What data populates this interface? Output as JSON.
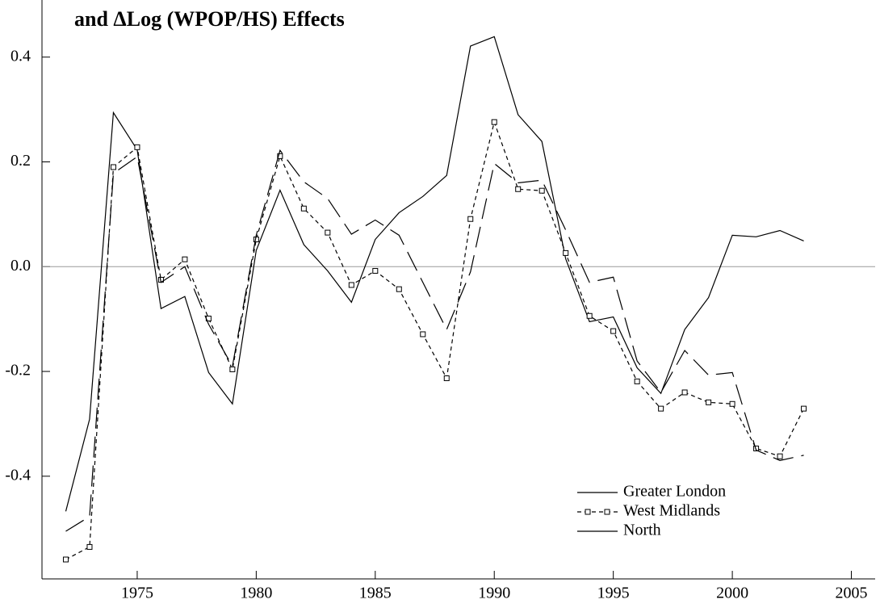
{
  "chart_data": {
    "type": "line",
    "title": "and ΔLog (WPOP/HS) Effects",
    "x": [
      1972,
      1973,
      1974,
      1975,
      1976,
      1977,
      1978,
      1979,
      1980,
      1981,
      1982,
      1983,
      1984,
      1985,
      1986,
      1987,
      1988,
      1989,
      1990,
      1991,
      1992,
      1993,
      1994,
      1995,
      1996,
      1997,
      1998,
      1999,
      2000,
      2001,
      2002,
      2003
    ],
    "series": [
      {
        "name": "Greater London",
        "color": "#000000",
        "line_style": "solid",
        "values": [
          -0.467,
          -0.291,
          0.294,
          0.223,
          -0.08,
          -0.057,
          -0.202,
          -0.262,
          0.031,
          0.146,
          0.042,
          -0.008,
          -0.068,
          0.052,
          0.103,
          0.134,
          0.174,
          0.421,
          0.439,
          0.29,
          0.239,
          0.015,
          -0.105,
          -0.096,
          -0.193,
          -0.242,
          -0.12,
          -0.059,
          0.06,
          0.057,
          0.069,
          0.049
        ]
      },
      {
        "name": "West Midlands",
        "color": "#000000",
        "line_style": "dashed",
        "marker": "square",
        "values": [
          -0.559,
          -0.535,
          0.19,
          0.228,
          -0.025,
          0.014,
          -0.099,
          -0.196,
          0.052,
          0.211,
          0.111,
          0.065,
          -0.035,
          -0.008,
          -0.043,
          -0.129,
          -0.213,
          0.091,
          0.276,
          0.148,
          0.145,
          0.026,
          -0.094,
          -0.123,
          -0.219,
          -0.271,
          -0.24,
          -0.259,
          -0.262,
          -0.347,
          -0.362,
          -0.271
        ]
      },
      {
        "name": "North",
        "color": "#000000",
        "line_style": "long-dash",
        "values": [
          -0.505,
          -0.477,
          0.178,
          0.21,
          -0.03,
          0.0,
          -0.11,
          -0.19,
          0.06,
          0.222,
          0.162,
          0.13,
          0.062,
          0.089,
          0.06,
          -0.03,
          -0.12,
          -0.01,
          0.197,
          0.16,
          0.165,
          0.07,
          -0.03,
          -0.02,
          -0.18,
          -0.24,
          -0.16,
          -0.207,
          -0.202,
          -0.35,
          -0.37,
          -0.36
        ]
      }
    ],
    "xlim": [
      1971,
      2006
    ],
    "ylim": [
      -0.596,
      0.509
    ],
    "xticks": [
      1975,
      1980,
      1985,
      1990,
      1995,
      2000,
      2005
    ],
    "yticks": [
      0.4,
      0.2,
      {
        "value": 0,
        "label": "0.0"
      },
      -0.2,
      -0.4
    ],
    "zero_line": true,
    "legend": "lower right"
  }
}
